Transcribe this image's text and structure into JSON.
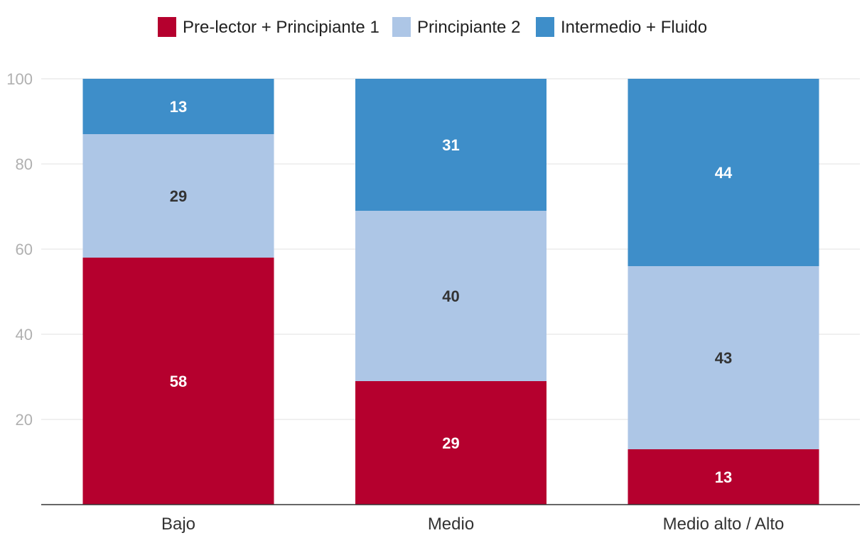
{
  "chart_data": {
    "type": "bar",
    "stacked": true,
    "categories": [
      "Bajo",
      "Medio",
      "Medio alto / Alto"
    ],
    "series": [
      {
        "name": "Pre-lector + Principiante 1",
        "color": "#b5002e",
        "label_color": "#ffffff",
        "values": [
          58,
          29,
          13
        ]
      },
      {
        "name": "Principiante 2",
        "color": "#adc6e6",
        "label_color": "#333333",
        "values": [
          29,
          40,
          43
        ]
      },
      {
        "name": "Intermedio + Fluido",
        "color": "#3e8ec9",
        "label_color": "#ffffff",
        "values": [
          13,
          31,
          44
        ]
      }
    ],
    "y_ticks": [
      20,
      40,
      60,
      80,
      100
    ],
    "ylim": [
      0,
      100
    ],
    "grid": true,
    "legend_position": "top-center",
    "title": "",
    "xlabel": "",
    "ylabel": ""
  }
}
